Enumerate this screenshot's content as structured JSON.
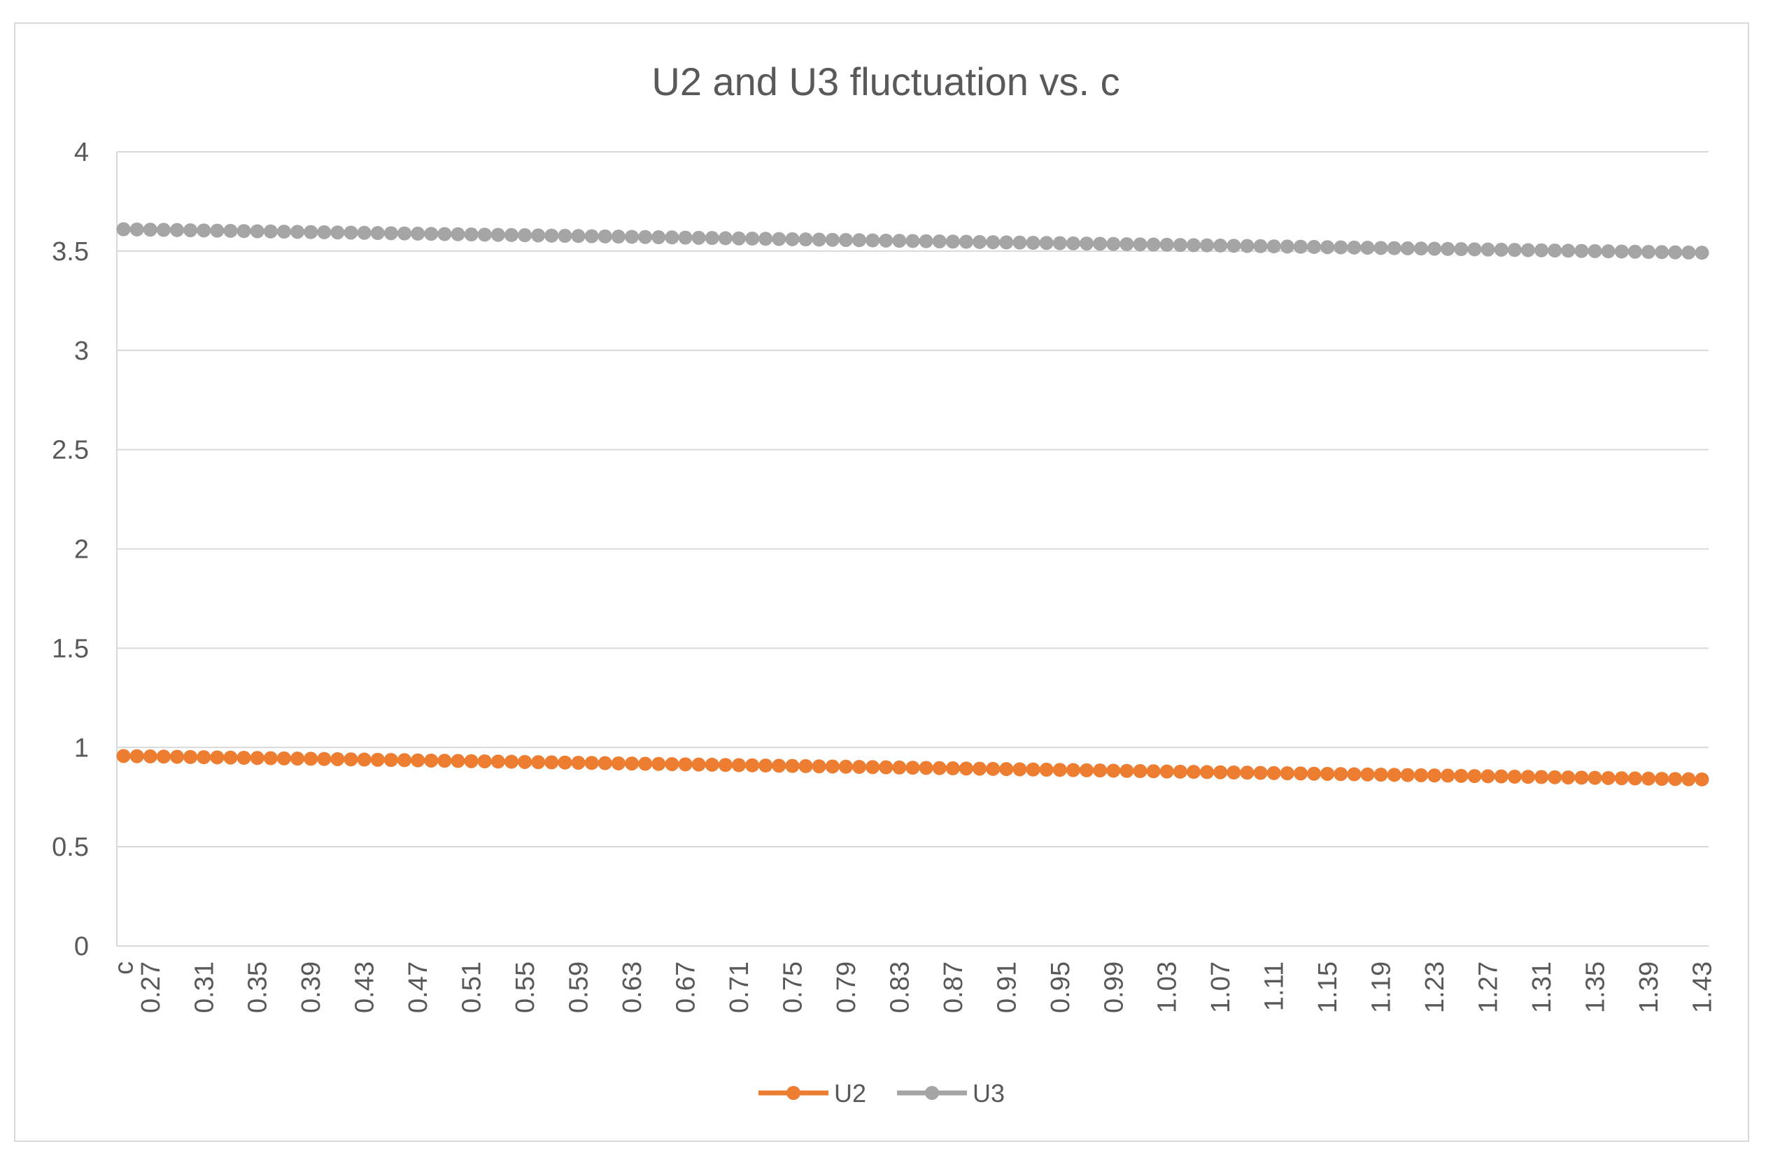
{
  "chart_data": {
    "type": "line",
    "title": "U2 and U3 fluctuation vs.  c",
    "xlabel": "",
    "ylabel": "",
    "ylim": [
      0,
      4
    ],
    "yticks": [
      "0",
      "0.5",
      "1",
      "1.5",
      "2",
      "2.5",
      "3",
      "3.5",
      "4"
    ],
    "categories": [
      "c",
      "0.26",
      "0.27",
      "0.28",
      "0.29",
      "0.30",
      "0.31",
      "0.32",
      "0.33",
      "0.34",
      "0.35",
      "0.36",
      "0.37",
      "0.38",
      "0.39",
      "0.40",
      "0.41",
      "0.42",
      "0.43",
      "0.44",
      "0.45",
      "0.46",
      "0.47",
      "0.48",
      "0.49",
      "0.50",
      "0.51",
      "0.52",
      "0.53",
      "0.54",
      "0.55",
      "0.56",
      "0.57",
      "0.58",
      "0.59",
      "0.60",
      "0.61",
      "0.62",
      "0.63",
      "0.64",
      "0.65",
      "0.66",
      "0.67",
      "0.68",
      "0.69",
      "0.70",
      "0.71",
      "0.72",
      "0.73",
      "0.74",
      "0.75",
      "0.76",
      "0.77",
      "0.78",
      "0.79",
      "0.80",
      "0.81",
      "0.82",
      "0.83",
      "0.84",
      "0.85",
      "0.86",
      "0.87",
      "0.88",
      "0.89",
      "0.90",
      "0.91",
      "0.92",
      "0.93",
      "0.94",
      "0.95",
      "0.96",
      "0.97",
      "0.98",
      "0.99",
      "1.00",
      "1.01",
      "1.02",
      "1.03",
      "1.04",
      "1.05",
      "1.06",
      "1.07",
      "1.08",
      "1.09",
      "1.10",
      "1.11",
      "1.12",
      "1.13",
      "1.14",
      "1.15",
      "1.16",
      "1.17",
      "1.18",
      "1.19",
      "1.20",
      "1.21",
      "1.22",
      "1.23",
      "1.24",
      "1.25",
      "1.26",
      "1.27",
      "1.28",
      "1.29",
      "1.30",
      "1.31",
      "1.32",
      "1.33",
      "1.34",
      "1.35",
      "1.36",
      "1.37",
      "1.38",
      "1.39",
      "1.40",
      "1.41",
      "1.42",
      "1.43"
    ],
    "visible_xtick_labels": [
      "c",
      "0.27",
      "0.31",
      "0.35",
      "0.39",
      "0.43",
      "0.47",
      "0.51",
      "0.55",
      "0.59",
      "0.63",
      "0.67",
      "0.71",
      "0.75",
      "0.79",
      "0.83",
      "0.87",
      "0.91",
      "0.95",
      "0.99",
      "1.03",
      "1.07",
      "1.11",
      "1.15",
      "1.19",
      "1.23",
      "1.27",
      "1.31",
      "1.35",
      "1.39",
      "1.43"
    ],
    "series": [
      {
        "name": "U2",
        "color": "#ed7d31",
        "values": [
          0.957,
          0.956,
          0.955,
          0.954,
          0.953,
          0.952,
          0.951,
          0.95,
          0.949,
          0.948,
          0.947,
          0.946,
          0.945,
          0.944,
          0.943,
          0.942,
          0.941,
          0.94,
          0.939,
          0.938,
          0.937,
          0.936,
          0.935,
          0.934,
          0.933,
          0.932,
          0.931,
          0.93,
          0.929,
          0.928,
          0.927,
          0.926,
          0.925,
          0.924,
          0.923,
          0.922,
          0.921,
          0.92,
          0.919,
          0.918,
          0.917,
          0.916,
          0.915,
          0.914,
          0.913,
          0.912,
          0.911,
          0.91,
          0.909,
          0.908,
          0.907,
          0.906,
          0.905,
          0.904,
          0.903,
          0.902,
          0.901,
          0.9,
          0.899,
          0.898,
          0.897,
          0.896,
          0.895,
          0.894,
          0.893,
          0.892,
          0.891,
          0.89,
          0.889,
          0.888,
          0.887,
          0.886,
          0.885,
          0.884,
          0.883,
          0.882,
          0.881,
          0.88,
          0.879,
          0.878,
          0.877,
          0.876,
          0.875,
          0.874,
          0.873,
          0.872,
          0.871,
          0.87,
          0.869,
          0.868,
          0.867,
          0.866,
          0.865,
          0.864,
          0.863,
          0.862,
          0.861,
          0.86,
          0.859,
          0.858,
          0.857,
          0.856,
          0.855,
          0.854,
          0.853,
          0.852,
          0.851,
          0.85,
          0.849,
          0.848,
          0.847,
          0.846,
          0.845,
          0.844,
          0.843,
          0.842,
          0.841,
          0.84,
          0.839
        ]
      },
      {
        "name": "U3",
        "color": "#a5a5a5",
        "values": [
          3.61,
          3.609,
          3.608,
          3.607,
          3.606,
          3.605,
          3.604,
          3.603,
          3.602,
          3.601,
          3.6,
          3.599,
          3.598,
          3.597,
          3.596,
          3.595,
          3.594,
          3.593,
          3.592,
          3.591,
          3.59,
          3.589,
          3.588,
          3.587,
          3.586,
          3.585,
          3.584,
          3.583,
          3.582,
          3.581,
          3.58,
          3.579,
          3.578,
          3.577,
          3.576,
          3.575,
          3.574,
          3.573,
          3.572,
          3.571,
          3.57,
          3.569,
          3.568,
          3.567,
          3.566,
          3.565,
          3.564,
          3.563,
          3.562,
          3.561,
          3.56,
          3.559,
          3.558,
          3.557,
          3.556,
          3.555,
          3.554,
          3.553,
          3.552,
          3.551,
          3.55,
          3.549,
          3.548,
          3.547,
          3.546,
          3.545,
          3.544,
          3.543,
          3.542,
          3.541,
          3.54,
          3.539,
          3.538,
          3.537,
          3.536,
          3.535,
          3.534,
          3.533,
          3.532,
          3.531,
          3.53,
          3.529,
          3.528,
          3.527,
          3.526,
          3.525,
          3.524,
          3.523,
          3.522,
          3.521,
          3.52,
          3.519,
          3.518,
          3.517,
          3.516,
          3.515,
          3.514,
          3.513,
          3.512,
          3.511,
          3.51,
          3.509,
          3.508,
          3.507,
          3.506,
          3.505,
          3.504,
          3.503,
          3.502,
          3.501,
          3.5,
          3.499,
          3.498,
          3.497,
          3.496,
          3.495,
          3.494,
          3.493,
          3.492
        ]
      }
    ],
    "markers": true,
    "grid": true,
    "legend": "bottom"
  }
}
